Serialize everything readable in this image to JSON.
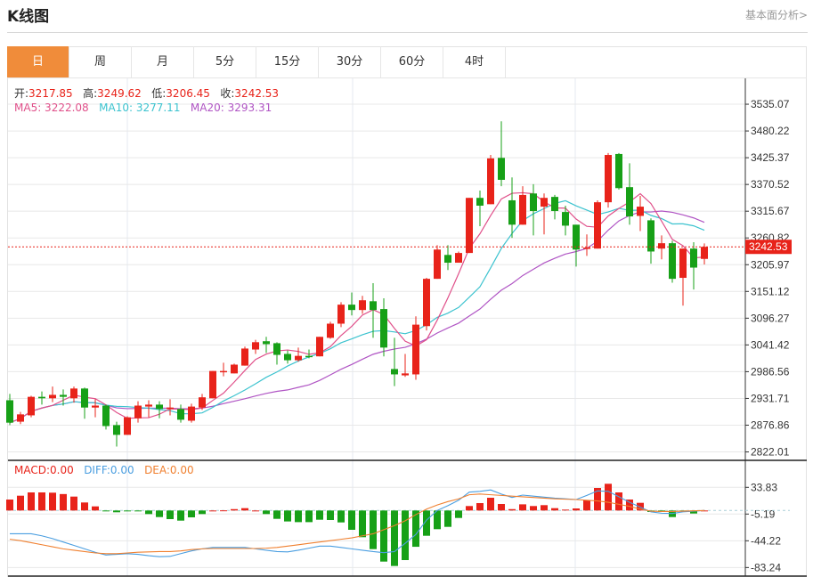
{
  "header": {
    "title": "K线图",
    "link": "基本面分析>"
  },
  "tabs": [
    {
      "label": "日",
      "active": true
    },
    {
      "label": "周"
    },
    {
      "label": "月"
    },
    {
      "label": "5分"
    },
    {
      "label": "15分"
    },
    {
      "label": "30分"
    },
    {
      "label": "60分"
    },
    {
      "label": "4时"
    }
  ],
  "ohlc": {
    "open_label": "开:",
    "open": "3217.85",
    "high_label": "高:",
    "high": "3249.62",
    "low_label": "低:",
    "low": "3206.45",
    "close_label": "收:",
    "close": "3242.53"
  },
  "ma": {
    "ma5": "MA5: 3222.08",
    "ma10": "MA10: 3277.11",
    "ma20": "MA20: 3293.31"
  },
  "macd_legend": {
    "macd": "MACD:0.00",
    "diff": "DIFF:0.00",
    "dea": "DEA:0.00"
  },
  "colors": {
    "up": "#e8231a",
    "down": "#17a017",
    "ma5": "#e0508a",
    "ma10": "#3cc3cf",
    "ma20": "#b055c4",
    "diff": "#4a9ee0",
    "dea": "#f08030",
    "accent": "#f08c3a"
  },
  "chart_data": [
    {
      "type": "candlestick",
      "ylim": [
        2804.7,
        3588.1
      ],
      "yticks": [
        "3535.07",
        "3480.22",
        "3425.37",
        "3370.52",
        "3315.67",
        "3260.82",
        "3205.97",
        "3151.12",
        "3096.27",
        "3041.42",
        "2986.56",
        "2931.71",
        "2876.86",
        "2822.01"
      ],
      "last_price": "3242.53",
      "grid": true,
      "ma_periods": [
        5,
        10,
        20
      ],
      "ohlc": [
        [
          2928,
          2941,
          2877,
          2882
        ],
        [
          2884,
          2904,
          2879,
          2899
        ],
        [
          2897,
          2937,
          2893,
          2935
        ],
        [
          2935,
          2946,
          2919,
          2932
        ],
        [
          2932,
          2956,
          2924,
          2939
        ],
        [
          2939,
          2950,
          2917,
          2935
        ],
        [
          2932,
          2956,
          2923,
          2952
        ],
        [
          2952,
          2954,
          2890,
          2913
        ],
        [
          2913,
          2930,
          2893,
          2917
        ],
        [
          2917,
          2919,
          2868,
          2875
        ],
        [
          2877,
          2884,
          2833,
          2857
        ],
        [
          2857,
          2895,
          2857,
          2893
        ],
        [
          2891,
          2926,
          2882,
          2917
        ],
        [
          2915,
          2928,
          2893,
          2919
        ],
        [
          2919,
          2926,
          2891,
          2910
        ],
        [
          2910,
          2930,
          2897,
          2913
        ],
        [
          2910,
          2919,
          2882,
          2888
        ],
        [
          2886,
          2921,
          2882,
          2915
        ],
        [
          2913,
          2941,
          2908,
          2934
        ],
        [
          2932,
          2988,
          2932,
          2988
        ],
        [
          2987,
          3005,
          2977,
          2988
        ],
        [
          2983,
          3003,
          2983,
          3001
        ],
        [
          2999,
          3038,
          2999,
          3034
        ],
        [
          3032,
          3052,
          3023,
          3047
        ],
        [
          3049,
          3058,
          3025,
          3043
        ],
        [
          3045,
          3047,
          3001,
          3021
        ],
        [
          3023,
          3030,
          3003,
          3010
        ],
        [
          3010,
          3036,
          3007,
          3019
        ],
        [
          3019,
          3032,
          3014,
          3018
        ],
        [
          3018,
          3058,
          3018,
          3058
        ],
        [
          3056,
          3089,
          3054,
          3085
        ],
        [
          3085,
          3129,
          3078,
          3124
        ],
        [
          3124,
          3149,
          3102,
          3113
        ],
        [
          3113,
          3142,
          3105,
          3133
        ],
        [
          3131,
          3168,
          3056,
          3113
        ],
        [
          3115,
          3137,
          3018,
          3036
        ],
        [
          2992,
          3056,
          2957,
          2981
        ],
        [
          2979,
          3023,
          2976,
          2983
        ],
        [
          2981,
          3100,
          2970,
          3083
        ],
        [
          3080,
          3179,
          3071,
          3177
        ],
        [
          3177,
          3246,
          3177,
          3237
        ],
        [
          3226,
          3246,
          3195,
          3210
        ],
        [
          3210,
          3233,
          3210,
          3230
        ],
        [
          3230,
          3343,
          3230,
          3343
        ],
        [
          3343,
          3358,
          3285,
          3327
        ],
        [
          3330,
          3431,
          3330,
          3424
        ],
        [
          3425,
          3500,
          3367,
          3380
        ],
        [
          3338,
          3385,
          3261,
          3288
        ],
        [
          3288,
          3367,
          3288,
          3349
        ],
        [
          3352,
          3371,
          3266,
          3316
        ],
        [
          3325,
          3352,
          3268,
          3343
        ],
        [
          3345,
          3349,
          3299,
          3316
        ],
        [
          3314,
          3327,
          3266,
          3286
        ],
        [
          3288,
          3288,
          3202,
          3237
        ],
        [
          3239,
          3268,
          3224,
          3241
        ],
        [
          3239,
          3338,
          3239,
          3334
        ],
        [
          3334,
          3435,
          3323,
          3431
        ],
        [
          3433,
          3435,
          3360,
          3363
        ],
        [
          3365,
          3414,
          3288,
          3305
        ],
        [
          3306,
          3347,
          3275,
          3325
        ],
        [
          3297,
          3301,
          3208,
          3233
        ],
        [
          3239,
          3266,
          3217,
          3250
        ],
        [
          3250,
          3255,
          3169,
          3177
        ],
        [
          3179,
          3239,
          3122,
          3239
        ],
        [
          3239,
          3252,
          3155,
          3200
        ],
        [
          3217.85,
          3249.62,
          3206.45,
          3242.53
        ]
      ]
    },
    {
      "type": "bar+line",
      "ylim": [
        -95.8,
        73.2
      ],
      "yticks": [
        "33.83",
        "-5.19",
        "-44.22",
        "-83.24"
      ],
      "macd": [
        16,
        21.6,
        26.4,
        26.4,
        26,
        24,
        20.3,
        11.7,
        6,
        -0.5,
        -2.6,
        -1,
        -1,
        -5.2,
        -9.6,
        -12.6,
        -14.8,
        -10,
        -5.2,
        0,
        0.2,
        2,
        3.4,
        0,
        -5.2,
        -12.2,
        -16,
        -17,
        -17,
        -13.5,
        -13.9,
        -17.4,
        -28.2,
        -39,
        -56.4,
        -74.6,
        -81,
        -72.4,
        -53,
        -36.9,
        -27.3,
        -23.9,
        -10.9,
        6.5,
        10.8,
        18.6,
        9.5,
        2,
        9,
        6.5,
        7.8,
        3.4,
        1.3,
        3,
        15.1,
        32.9,
        39,
        26.4,
        16,
        11.2,
        -2.2,
        -2.2,
        -9.6,
        -1,
        -4.4,
        0
      ],
      "diff": [
        -34,
        -34,
        -34,
        -37,
        -41,
        -46,
        -51,
        -56,
        -61,
        -65,
        -64,
        -63,
        -64,
        -66,
        -67.5,
        -67,
        -63,
        -59,
        -56,
        -54,
        -54,
        -54,
        -54,
        -56,
        -58,
        -60,
        -60.5,
        -58,
        -55,
        -52,
        -52,
        -54,
        -56,
        -58,
        -60,
        -61.6,
        -60,
        -48,
        -35,
        -14,
        0,
        7,
        15,
        26.8,
        28,
        30,
        24,
        19,
        22.5,
        21,
        19.5,
        18,
        17,
        16,
        22,
        28.6,
        28,
        20,
        12,
        5,
        -2,
        -4,
        -4.4,
        -2,
        -1,
        0
      ],
      "dea": [
        -42,
        -44,
        -47,
        -50,
        -53,
        -56,
        -58,
        -60,
        -62,
        -63,
        -63,
        -62,
        -61,
        -60.5,
        -60,
        -60,
        -59,
        -57,
        -56,
        -55.5,
        -55.5,
        -55.5,
        -55.5,
        -55.5,
        -55,
        -54,
        -52,
        -50,
        -48,
        -46,
        -44,
        -42,
        -40,
        -37,
        -34,
        -28,
        -22,
        -15,
        -6,
        2,
        8,
        13,
        17,
        23,
        24,
        23,
        22,
        21,
        20,
        19,
        18,
        17,
        16.5,
        16,
        15,
        14,
        12,
        9,
        6,
        2,
        -1,
        -1.5,
        -1.5,
        -1,
        -0.5,
        0
      ]
    }
  ]
}
